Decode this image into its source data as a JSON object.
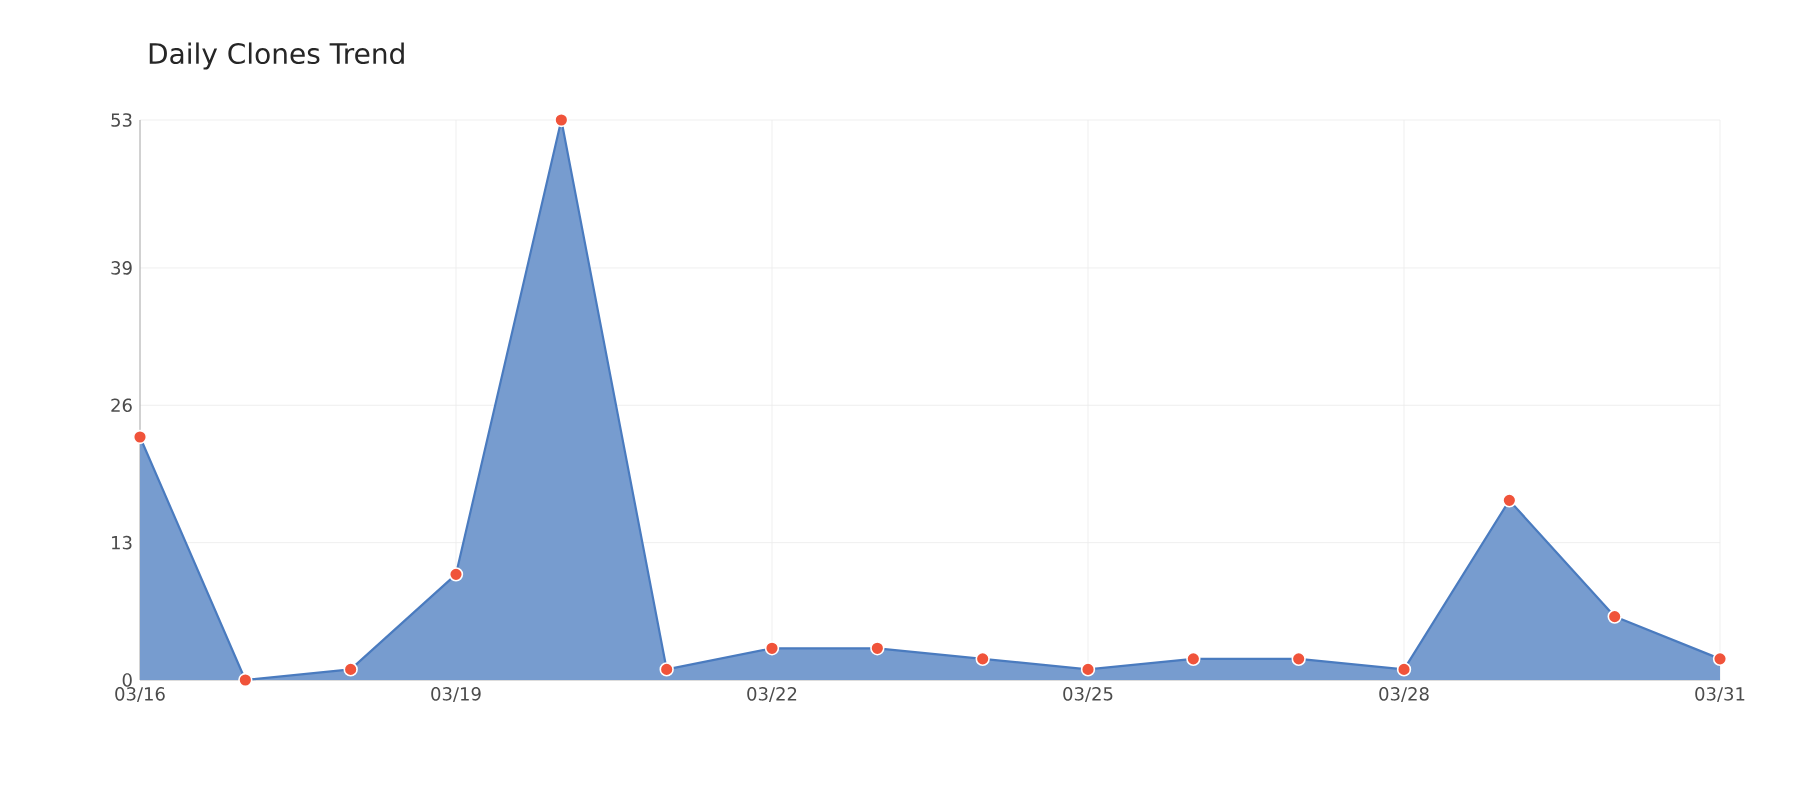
{
  "chart_data": {
    "type": "area",
    "title": "Daily Clones Trend",
    "categories": [
      "03/16",
      null,
      null,
      "03/19",
      null,
      null,
      "03/22",
      null,
      null,
      "03/25",
      null,
      null,
      "03/28",
      null,
      null,
      "03/31"
    ],
    "values": [
      23,
      0,
      1,
      10,
      53,
      1,
      3,
      3,
      2,
      1,
      2,
      2,
      1,
      17,
      6,
      2
    ],
    "color": "#4a7bbf",
    "ylim": [
      0,
      53
    ],
    "yticks": [
      0,
      13,
      26,
      39,
      53
    ],
    "grid": true,
    "marker": "circle",
    "line_style": "solid"
  }
}
